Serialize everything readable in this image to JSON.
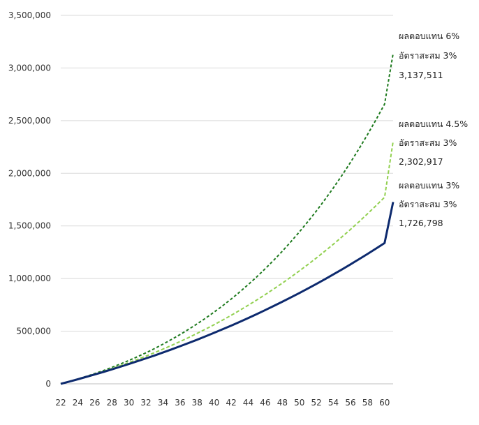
{
  "chart_data": {
    "type": "line",
    "title": "",
    "xlabel": "",
    "ylabel": "",
    "xlim": [
      22,
      61
    ],
    "ylim": [
      0,
      3500000
    ],
    "grid": "horizontal",
    "legend": "none",
    "x_ticks": [
      "22",
      "24",
      "26",
      "28",
      "30",
      "32",
      "34",
      "36",
      "38",
      "40",
      "42",
      "44",
      "46",
      "48",
      "50",
      "52",
      "54",
      "56",
      "58",
      "60"
    ],
    "y_ticks": [
      "0",
      "500,000",
      "1,000,000",
      "1,500,000",
      "2,000,000",
      "2,500,000",
      "3,000,000",
      "3,500,000"
    ],
    "x": [
      22,
      23,
      24,
      25,
      26,
      27,
      28,
      29,
      30,
      31,
      32,
      33,
      34,
      35,
      36,
      37,
      38,
      39,
      40,
      41,
      42,
      43,
      44,
      45,
      46,
      47,
      48,
      49,
      50,
      51,
      52,
      53,
      54,
      55,
      56,
      57,
      58,
      59,
      60,
      61
    ],
    "series": [
      {
        "key": "r6",
        "color": "#1e7a1e",
        "dash": "4,3",
        "width": 2,
        "annotation": [
          "ผลตอบแทน 6%",
          "อัตราสะสม 3%",
          "3,137,511"
        ],
        "values": [
          0,
          22270,
          45960,
          71130,
          97860,
          126220,
          156280,
          188130,
          221840,
          257500,
          295200,
          335020,
          377060,
          421410,
          468170,
          517450,
          569350,
          623990,
          681490,
          741960,
          805530,
          872330,
          942490,
          1016150,
          1093460,
          1174570,
          1259640,
          1348830,
          1442330,
          1540300,
          1642940,
          1750450,
          1863020,
          1980870,
          2104210,
          2233280,
          2368320,
          2509570,
          2657300,
          3137511
        ]
      },
      {
        "key": "r45",
        "color": "#92d050",
        "dash": "5,3",
        "width": 2,
        "annotation": [
          "ผลตอบแทน 4.5%",
          "อัตราสะสม 3%",
          "2,302,917"
        ],
        "values": [
          0,
          21800,
          44370,
          67940,
          92540,
          118200,
          144950,
          172820,
          201840,
          232040,
          263450,
          296100,
          330020,
          365240,
          401790,
          439700,
          479010,
          519750,
          561950,
          605650,
          650880,
          697680,
          746080,
          796130,
          847860,
          901310,
          956520,
          1013540,
          1072400,
          1133150,
          1195830,
          1260490,
          1327180,
          1395940,
          1466820,
          1539880,
          1615160,
          1692720,
          1772620,
          2302917
        ]
      },
      {
        "key": "r3",
        "color": "#0d2a6e",
        "dash": "",
        "width": 3,
        "annotation": [
          "ผลตอบแทน 3%",
          "อัตราสะสม 3%",
          "1,726,798"
        ],
        "values": [
          0,
          21400,
          43380,
          65960,
          89140,
          112940,
          137370,
          162440,
          188170,
          214570,
          241650,
          269430,
          297920,
          327130,
          357080,
          387780,
          419250,
          451500,
          484550,
          518410,
          553100,
          588630,
          625020,
          662290,
          700450,
          739520,
          779510,
          820440,
          862330,
          905190,
          949040,
          993900,
          1039780,
          1086700,
          1134680,
          1183730,
          1233880,
          1285140,
          1337530,
          1726798
        ]
      }
    ]
  }
}
